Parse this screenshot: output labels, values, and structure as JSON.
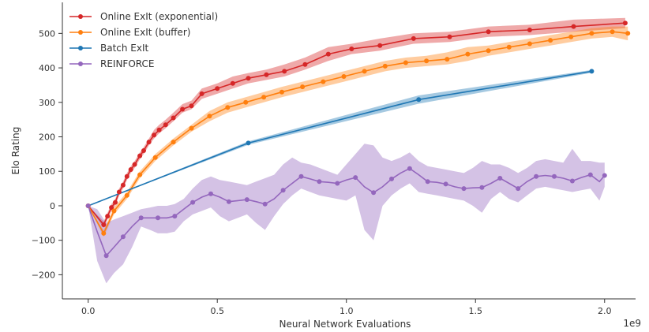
{
  "chart_data": {
    "type": "line",
    "xlabel": "Neural Network Evaluations",
    "ylabel": "Elo Rating",
    "x_offset_label": "1e9",
    "xlim": [
      -0.1,
      2.12
    ],
    "ylim": [
      -270,
      590
    ],
    "xticks": [
      0.0,
      0.5,
      1.0,
      1.5,
      2.0
    ],
    "xtick_labels": [
      "0.0",
      "0.5",
      "1.0",
      "1.5",
      "2.0"
    ],
    "yticks": [
      -200,
      -100,
      0,
      100,
      200,
      300,
      400,
      500
    ],
    "ytick_labels": [
      "−200",
      "−100",
      "0",
      "100",
      "200",
      "300",
      "400",
      "500"
    ],
    "grid": false,
    "legend_position": "top-left",
    "series": [
      {
        "name": "Online ExIt (exponential)",
        "color": "#d62728",
        "x": [
          0,
          0.06,
          0.075,
          0.09,
          0.105,
          0.12,
          0.135,
          0.15,
          0.165,
          0.18,
          0.2,
          0.215,
          0.235,
          0.255,
          0.275,
          0.3,
          0.33,
          0.365,
          0.4,
          0.44,
          0.5,
          0.56,
          0.62,
          0.69,
          0.76,
          0.84,
          0.93,
          1.02,
          1.13,
          1.26,
          1.4,
          1.55,
          1.71,
          1.88,
          2.08
        ],
        "y": [
          0,
          -55,
          -30,
          -5,
          10,
          40,
          60,
          85,
          105,
          120,
          145,
          160,
          185,
          205,
          220,
          235,
          255,
          280,
          290,
          325,
          340,
          355,
          370,
          380,
          390,
          410,
          440,
          455,
          465,
          485,
          490,
          505,
          510,
          520,
          530
        ],
        "band_lo": [
          0,
          -65,
          -40,
          -15,
          0,
          30,
          50,
          75,
          95,
          110,
          135,
          150,
          175,
          195,
          210,
          225,
          245,
          270,
          280,
          310,
          325,
          340,
          355,
          365,
          375,
          395,
          420,
          440,
          450,
          470,
          475,
          490,
          495,
          505,
          515
        ],
        "band_hi": [
          0,
          -45,
          -20,
          5,
          20,
          50,
          70,
          95,
          115,
          130,
          155,
          170,
          195,
          220,
          235,
          250,
          270,
          295,
          305,
          340,
          355,
          375,
          385,
          395,
          410,
          430,
          460,
          470,
          485,
          500,
          505,
          520,
          525,
          540,
          545
        ]
      },
      {
        "name": "Online ExIt (buffer)",
        "color": "#ff7f0e",
        "x": [
          0,
          0.06,
          0.1,
          0.15,
          0.2,
          0.26,
          0.33,
          0.4,
          0.47,
          0.54,
          0.61,
          0.68,
          0.75,
          0.83,
          0.91,
          0.99,
          1.07,
          1.15,
          1.23,
          1.31,
          1.39,
          1.47,
          1.55,
          1.63,
          1.71,
          1.79,
          1.87,
          1.95,
          2.03,
          2.09
        ],
        "y": [
          0,
          -80,
          -15,
          30,
          90,
          140,
          185,
          225,
          260,
          285,
          300,
          315,
          330,
          345,
          360,
          375,
          390,
          405,
          415,
          420,
          425,
          440,
          450,
          460,
          470,
          480,
          490,
          500,
          505,
          500
        ],
        "band_lo": [
          0,
          -90,
          -25,
          20,
          80,
          130,
          175,
          215,
          245,
          270,
          285,
          300,
          315,
          330,
          345,
          360,
          375,
          390,
          400,
          405,
          410,
          420,
          435,
          445,
          455,
          465,
          475,
          485,
          490,
          480
        ],
        "band_hi": [
          0,
          -70,
          -5,
          40,
          100,
          150,
          195,
          235,
          275,
          300,
          315,
          330,
          345,
          360,
          375,
          390,
          405,
          420,
          430,
          435,
          445,
          460,
          465,
          475,
          485,
          495,
          505,
          515,
          520,
          520
        ]
      },
      {
        "name": "Batch  ExIt",
        "color": "#1f77b4",
        "x": [
          0,
          0.62,
          1.28,
          1.95
        ],
        "y": [
          0,
          182,
          308,
          390
        ],
        "band_lo": [
          0,
          177,
          296,
          386
        ],
        "band_hi": [
          0,
          187,
          320,
          394
        ],
        "marker_indices": [
          1,
          2,
          3
        ]
      },
      {
        "name": "REINFORCE",
        "color": "#9467bd",
        "x": [
          0,
          0.035,
          0.07,
          0.1,
          0.135,
          0.17,
          0.205,
          0.24,
          0.27,
          0.305,
          0.335,
          0.37,
          0.405,
          0.44,
          0.475,
          0.51,
          0.545,
          0.58,
          0.615,
          0.65,
          0.685,
          0.72,
          0.755,
          0.79,
          0.825,
          0.86,
          0.895,
          0.93,
          0.965,
          1.0,
          1.035,
          1.07,
          1.105,
          1.14,
          1.175,
          1.21,
          1.245,
          1.28,
          1.315,
          1.35,
          1.385,
          1.42,
          1.455,
          1.49,
          1.525,
          1.56,
          1.595,
          1.63,
          1.665,
          1.7,
          1.735,
          1.77,
          1.805,
          1.84,
          1.875,
          1.91,
          1.945,
          1.98,
          2.0
        ],
        "y": [
          0,
          -75,
          -145,
          -120,
          -90,
          -60,
          -35,
          -35,
          -35,
          -35,
          -30,
          -10,
          10,
          25,
          35,
          25,
          12,
          15,
          18,
          12,
          5,
          20,
          45,
          65,
          85,
          78,
          70,
          68,
          65,
          75,
          82,
          55,
          38,
          55,
          78,
          95,
          108,
          90,
          70,
          68,
          63,
          55,
          50,
          52,
          53,
          65,
          80,
          65,
          50,
          70,
          85,
          88,
          85,
          80,
          72,
          82,
          90,
          70,
          88
        ],
        "band_lo": [
          0,
          -160,
          -225,
          -195,
          -170,
          -120,
          -60,
          -70,
          -80,
          -80,
          -75,
          -45,
          -25,
          -15,
          -5,
          -30,
          -45,
          -35,
          -25,
          -50,
          -70,
          -30,
          5,
          30,
          50,
          40,
          30,
          25,
          20,
          15,
          30,
          -70,
          -100,
          0,
          30,
          50,
          65,
          40,
          35,
          30,
          25,
          20,
          15,
          0,
          -20,
          20,
          40,
          20,
          10,
          30,
          50,
          55,
          50,
          45,
          40,
          45,
          50,
          15,
          55
        ],
        "band_hi": [
          0,
          -10,
          -50,
          -40,
          -30,
          -20,
          -10,
          -5,
          0,
          0,
          5,
          20,
          50,
          75,
          85,
          75,
          70,
          65,
          60,
          70,
          80,
          90,
          120,
          140,
          125,
          120,
          110,
          100,
          90,
          120,
          150,
          180,
          175,
          140,
          130,
          140,
          155,
          130,
          115,
          110,
          105,
          100,
          95,
          110,
          130,
          120,
          120,
          110,
          95,
          110,
          130,
          135,
          130,
          125,
          165,
          130,
          130,
          125,
          125
        ],
        "marker_indices": [
          0,
          2,
          4,
          6,
          8,
          10,
          12,
          14,
          16,
          18,
          20,
          22,
          24,
          26,
          28,
          30,
          32,
          34,
          36,
          38,
          40,
          42,
          44,
          46,
          48,
          50,
          52,
          54,
          56,
          58
        ]
      }
    ]
  }
}
